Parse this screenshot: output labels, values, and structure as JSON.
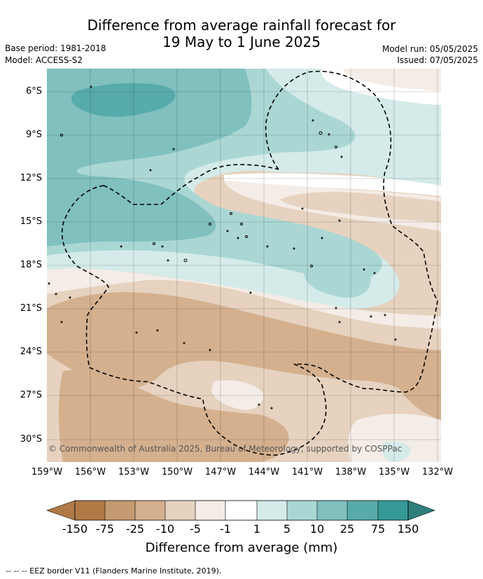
{
  "header": {
    "title_line1": "Difference from average rainfall forecast for",
    "title_line2": "19 May to 1 June 2025",
    "base_period": "Base period: 1981-2018",
    "model": "Model: ACCESS-S2",
    "model_run": "Model run: 05/05/2025",
    "issued": "Issued: 07/05/2025"
  },
  "map": {
    "lat_labels": [
      "6°S",
      "9°S",
      "12°S",
      "15°S",
      "18°S",
      "21°S",
      "24°S",
      "27°S",
      "30°S"
    ],
    "lon_labels": [
      "159°W",
      "156°W",
      "153°W",
      "150°W",
      "147°W",
      "144°W",
      "141°W",
      "138°W",
      "135°W",
      "132°W"
    ],
    "copyright": "© Commonwealth of Australia 2025, Bureau of Meteorology, supported by COSPPac"
  },
  "colorbar": {
    "labels": [
      "-150",
      "-75",
      "-25",
      "-10",
      "-5",
      "-1",
      "1",
      "5",
      "10",
      "25",
      "75",
      "150"
    ],
    "colors": [
      "#8a5a2b",
      "#b07a46",
      "#c49a70",
      "#d4b08e",
      "#e6d2bf",
      "#f4ece6",
      "#ffffff",
      "#d4ebe9",
      "#aad7d4",
      "#80c0bf",
      "#57abaa",
      "#359996",
      "#1f7a78"
    ],
    "title": "Difference from average (mm)"
  },
  "footnote": "-- -- -- EEZ border V11 (Flanders Marine Institute, 2019)."
}
